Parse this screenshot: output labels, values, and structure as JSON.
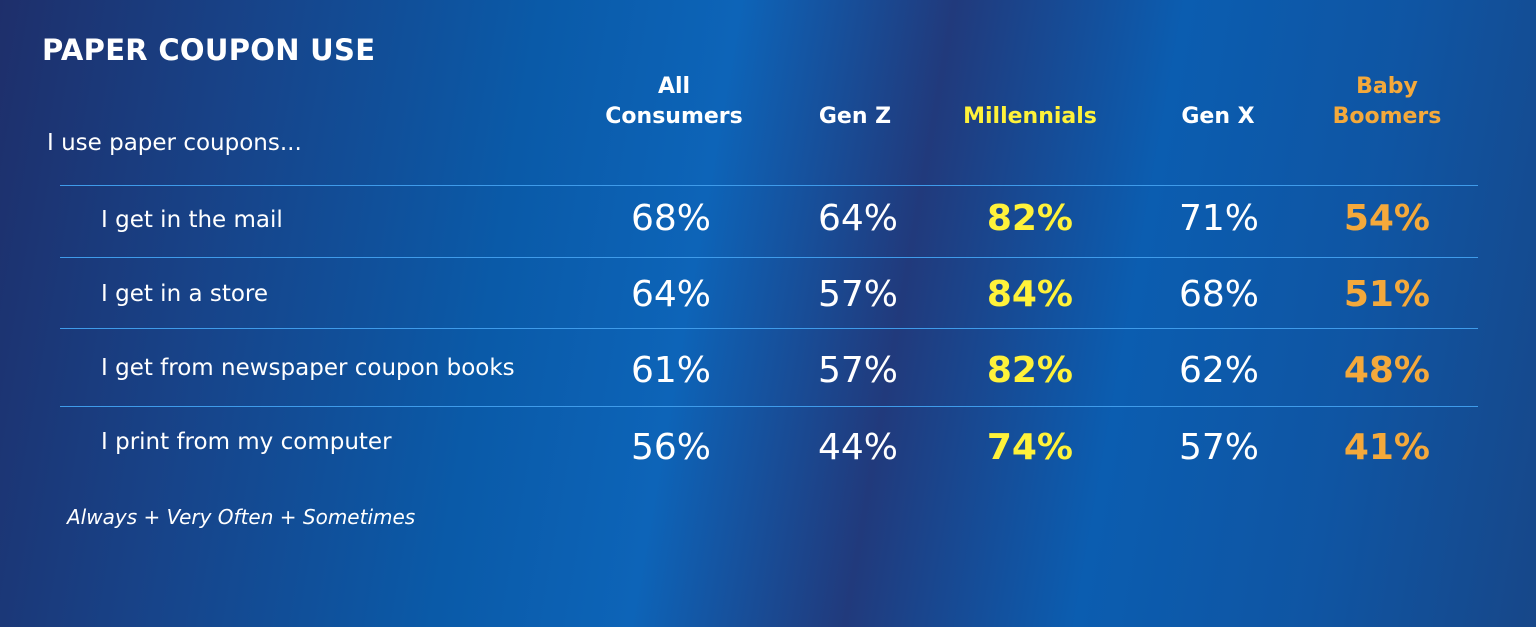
{
  "chart_data": {
    "type": "table",
    "title": "PAPER COUPON USE",
    "row_header": "I use paper coupons...",
    "columns": [
      {
        "name": "All Consumers",
        "label": "All\nConsumers",
        "color": "#ffffff",
        "bold_values": false
      },
      {
        "name": "Gen Z",
        "label": "Gen Z",
        "color": "#ffffff",
        "bold_values": false
      },
      {
        "name": "Millennials",
        "label": "Millennials",
        "color": "#fff23a",
        "bold_values": true
      },
      {
        "name": "Gen X",
        "label": "Gen X",
        "color": "#ffffff",
        "bold_values": false
      },
      {
        "name": "Baby Boomers",
        "label": "Baby\nBoomers",
        "color": "#f4a93b",
        "bold_values": true
      }
    ],
    "rows": [
      {
        "label": "I get in the mail",
        "values": [
          "68%",
          "64%",
          "82%",
          "71%",
          "54%"
        ]
      },
      {
        "label": "I get in a store",
        "values": [
          "64%",
          "57%",
          "84%",
          "68%",
          "51%"
        ]
      },
      {
        "label": "I get from newspaper coupon books",
        "values": [
          "61%",
          "57%",
          "82%",
          "62%",
          "48%"
        ]
      },
      {
        "label": "I print from my computer",
        "values": [
          "56%",
          "44%",
          "74%",
          "57%",
          "41%"
        ]
      }
    ],
    "footnote": "Always + Very Often + Sometimes"
  }
}
